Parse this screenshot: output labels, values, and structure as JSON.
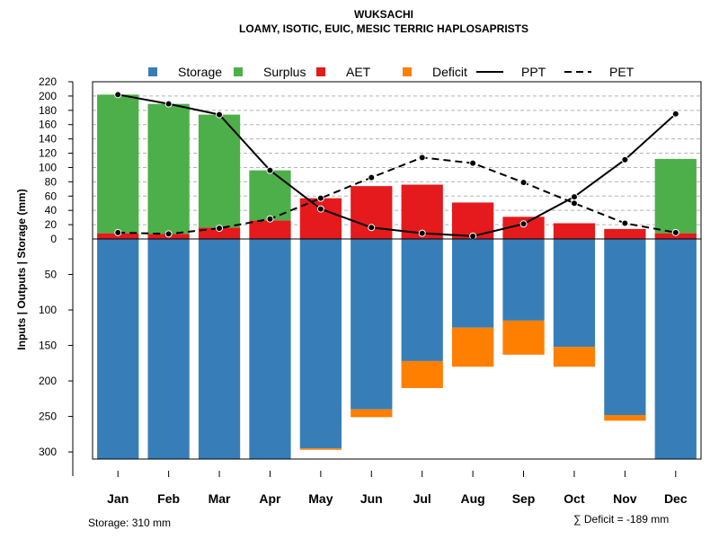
{
  "chart_data": {
    "type": "bar",
    "title": "WUKSACHI",
    "subtitle": "LOAMY, ISOTIC, EUIC, MESIC TERRIC HAPLOSAPRISTS",
    "ylabel": "Inputs | Outputs | Storage    (mm)",
    "categories": [
      "Jan",
      "Feb",
      "Mar",
      "Apr",
      "May",
      "Jun",
      "Jul",
      "Aug",
      "Sep",
      "Oct",
      "Nov",
      "Dec"
    ],
    "upper_ticks": [
      0,
      20,
      40,
      60,
      80,
      100,
      120,
      140,
      160,
      180,
      200,
      220
    ],
    "lower_ticks": [
      50,
      100,
      150,
      200,
      250,
      300
    ],
    "ylim_upper": [
      0,
      220
    ],
    "ylim_lower": [
      0,
      310
    ],
    "series": [
      {
        "name": "Storage",
        "color": "#377EB8",
        "values": [
          310,
          310,
          310,
          310,
          295,
          240,
          172,
          125,
          115,
          152,
          248,
          310
        ]
      },
      {
        "name": "Surplus",
        "color": "#4DAF4A",
        "values": [
          194,
          182,
          158,
          70,
          0,
          0,
          0,
          0,
          0,
          0,
          0,
          104
        ]
      },
      {
        "name": "AET",
        "color": "#E41A1C",
        "values": [
          8,
          7,
          16,
          26,
          57,
          74,
          76,
          51,
          31,
          22,
          14,
          8
        ]
      },
      {
        "name": "Deficit",
        "color": "#FF7F00",
        "values": [
          0,
          0,
          0,
          0,
          2,
          11,
          38,
          55,
          48,
          28,
          8,
          0
        ]
      },
      {
        "name": "PPT",
        "values": [
          202,
          189,
          174,
          96,
          42,
          16,
          8,
          4,
          21,
          59,
          111,
          175
        ]
      },
      {
        "name": "PET",
        "values": [
          9,
          7,
          15,
          28,
          57,
          86,
          114,
          106,
          79,
          50,
          22,
          9
        ]
      }
    ],
    "legend": [
      {
        "label": "Storage",
        "kind": "box",
        "color": "#377EB8"
      },
      {
        "label": "Surplus",
        "kind": "box",
        "color": "#4DAF4A"
      },
      {
        "label": "AET",
        "kind": "box",
        "color": "#E41A1C"
      },
      {
        "label": "Deficit",
        "kind": "box",
        "color": "#FF7F00"
      },
      {
        "label": "PPT",
        "kind": "solid"
      },
      {
        "label": "PET",
        "kind": "dashed"
      }
    ],
    "legend_position": "top",
    "grid": true,
    "storage_note": "Storage: 310 mm",
    "deficit_note": "∑ Deficit = -189 mm"
  }
}
